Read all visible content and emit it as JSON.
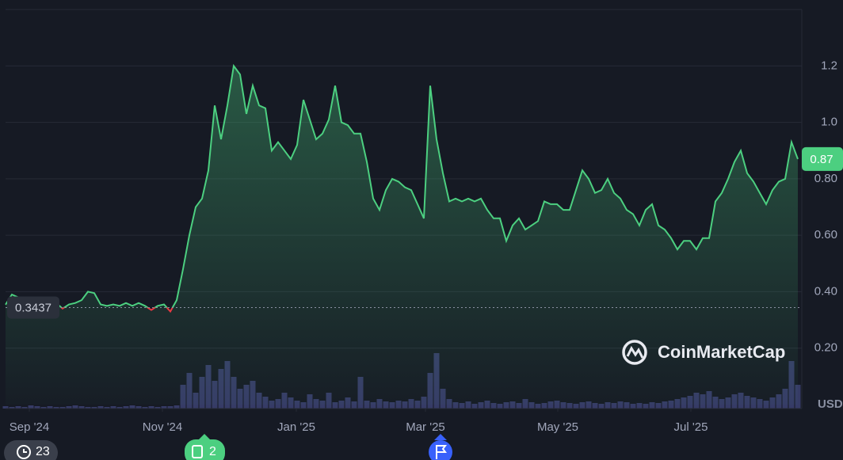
{
  "chart_data": {
    "type": "line",
    "values": [
      0.354,
      0.39,
      0.38,
      0.36,
      0.37,
      0.355,
      0.37,
      0.36,
      0.36,
      0.34,
      0.355,
      0.36,
      0.37,
      0.4,
      0.395,
      0.355,
      0.35,
      0.355,
      0.35,
      0.36,
      0.35,
      0.36,
      0.35,
      0.335,
      0.35,
      0.355,
      0.33,
      0.37,
      0.48,
      0.6,
      0.7,
      0.73,
      0.83,
      1.06,
      0.94,
      1.06,
      1.2,
      1.17,
      1.03,
      1.13,
      1.06,
      1.05,
      0.9,
      0.93,
      0.9,
      0.87,
      0.92,
      1.08,
      1.01,
      0.94,
      0.96,
      1.01,
      1.13,
      1.0,
      0.99,
      0.96,
      0.96,
      0.86,
      0.73,
      0.69,
      0.76,
      0.8,
      0.79,
      0.77,
      0.76,
      0.71,
      0.66,
      1.13,
      0.94,
      0.82,
      0.72,
      0.73,
      0.72,
      0.73,
      0.72,
      0.73,
      0.69,
      0.66,
      0.66,
      0.58,
      0.635,
      0.66,
      0.62,
      0.635,
      0.65,
      0.72,
      0.71,
      0.71,
      0.69,
      0.69,
      0.76,
      0.83,
      0.8,
      0.75,
      0.76,
      0.8,
      0.75,
      0.73,
      0.69,
      0.675,
      0.635,
      0.69,
      0.71,
      0.635,
      0.62,
      0.59,
      0.55,
      0.58,
      0.58,
      0.55,
      0.59,
      0.59,
      0.72,
      0.75,
      0.8,
      0.86,
      0.9,
      0.82,
      0.79,
      0.75,
      0.71,
      0.76,
      0.79,
      0.8,
      0.93,
      0.87
    ],
    "color": "#4ccf80",
    "down_color": "#ea3943",
    "reference": 0.3437,
    "volume": [
      3,
      2,
      3,
      2,
      4,
      3,
      2,
      3,
      2,
      2,
      3,
      4,
      3,
      2,
      2,
      3,
      2,
      3,
      2,
      3,
      4,
      3,
      2,
      3,
      2,
      3,
      3,
      4,
      30,
      45,
      20,
      40,
      55,
      35,
      50,
      60,
      40,
      25,
      30,
      35,
      20,
      15,
      10,
      12,
      20,
      14,
      10,
      8,
      18,
      12,
      10,
      20,
      8,
      10,
      14,
      9,
      40,
      10,
      8,
      12,
      9,
      8,
      10,
      9,
      12,
      10,
      15,
      45,
      70,
      25,
      12,
      8,
      7,
      9,
      6,
      8,
      10,
      7,
      6,
      8,
      9,
      7,
      12,
      8,
      6,
      7,
      9,
      10,
      8,
      7,
      6,
      8,
      9,
      7,
      6,
      8,
      7,
      9,
      8,
      6,
      7,
      6,
      8,
      7,
      9,
      10,
      12,
      14,
      16,
      20,
      18,
      22,
      15,
      12,
      14,
      18,
      20,
      16,
      14,
      12,
      10,
      14,
      18,
      25,
      60,
      30
    ],
    "volume_color": "#363b66",
    "ylim": [
      0,
      1.4
    ],
    "yticks": [
      {
        "value": 0.2,
        "label": "0.20"
      },
      {
        "value": 0.4,
        "label": "0.40"
      },
      {
        "value": 0.6,
        "label": "0.60"
      },
      {
        "value": 0.8,
        "label": "0.80"
      },
      {
        "value": 1.0,
        "label": "1.0"
      },
      1.2
    ],
    "xticks": [
      {
        "value": 3.75,
        "label": "Sep '24"
      },
      {
        "value": 24.75,
        "label": "Nov '24"
      },
      {
        "value": 45.875,
        "label": "Jan '25"
      },
      {
        "value": 66.25,
        "label": "Mar '25"
      },
      {
        "value": 87.125,
        "label": "May '25"
      },
      {
        "value": 108.125,
        "label": "Jul '25"
      }
    ],
    "grid": true,
    "currency": "USD",
    "watermark": "CoinMarketCap"
  },
  "badges": {
    "history": 23,
    "news": 2
  }
}
